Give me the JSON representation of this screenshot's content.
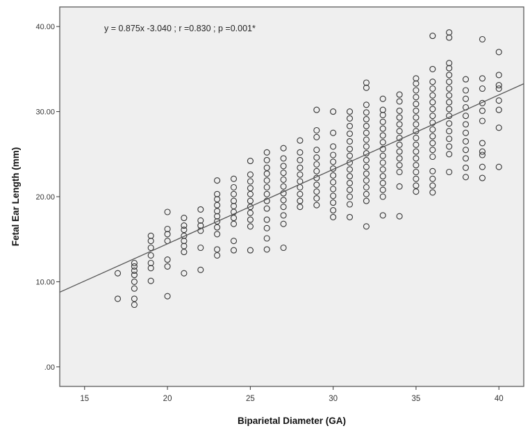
{
  "chart_data": {
    "type": "scatter",
    "title": "",
    "xlabel": "Biparietal Diameter (GA)",
    "ylabel": "Fetal Ear Length (mm)",
    "xlim": [
      13.5,
      41.5
    ],
    "ylim": [
      -2.3,
      42.3
    ],
    "x_ticks": [
      15,
      20,
      25,
      30,
      35,
      40
    ],
    "x_tick_labels": [
      "15",
      "20",
      "25",
      "30",
      "35",
      "40"
    ],
    "y_ticks": [
      0,
      10,
      20,
      30,
      40
    ],
    "y_tick_labels": [
      ".00",
      "10.00",
      "20.00",
      "30.00",
      "40.00"
    ],
    "annotation": "y = 0.875x -3.040 ; r =0.830 ; p =0.001*",
    "grid": false,
    "legend": "none",
    "fit_line": {
      "slope": 0.875,
      "intercept": -3.04
    },
    "colors": {
      "plot_background": "#efefef",
      "marker": "#333333",
      "fit_line": "#555555"
    },
    "points": [
      [
        17,
        8
      ],
      [
        17,
        11
      ],
      [
        18,
        7.3
      ],
      [
        18,
        8
      ],
      [
        18,
        9.2
      ],
      [
        18,
        10
      ],
      [
        18,
        10.8
      ],
      [
        18,
        11.3
      ],
      [
        18,
        11.8
      ],
      [
        18,
        12.2
      ],
      [
        19,
        10.1
      ],
      [
        19,
        11.6
      ],
      [
        19,
        12.2
      ],
      [
        19,
        13.1
      ],
      [
        19,
        14
      ],
      [
        19,
        14.8
      ],
      [
        19,
        15.4
      ],
      [
        20,
        8.3
      ],
      [
        20,
        11.8
      ],
      [
        20,
        12.6
      ],
      [
        20,
        14.8
      ],
      [
        20,
        15.6
      ],
      [
        20,
        16.2
      ],
      [
        20,
        18.2
      ],
      [
        21,
        11
      ],
      [
        21,
        13.5
      ],
      [
        21,
        14.2
      ],
      [
        21,
        14.8
      ],
      [
        21,
        15.4
      ],
      [
        21,
        16.1
      ],
      [
        21,
        16.6
      ],
      [
        21,
        17.5
      ],
      [
        22,
        11.4
      ],
      [
        22,
        14
      ],
      [
        22,
        16
      ],
      [
        22,
        16.6
      ],
      [
        22,
        17.2
      ],
      [
        22,
        18.5
      ],
      [
        23,
        13.1
      ],
      [
        23,
        13.8
      ],
      [
        23,
        15.6
      ],
      [
        23,
        16.4
      ],
      [
        23,
        17.1
      ],
      [
        23,
        17.7
      ],
      [
        23,
        18.3
      ],
      [
        23,
        19
      ],
      [
        23,
        19.7
      ],
      [
        23,
        20.3
      ],
      [
        23,
        21.9
      ],
      [
        24,
        13.7
      ],
      [
        24,
        14.8
      ],
      [
        24,
        16.8
      ],
      [
        24,
        17.5
      ],
      [
        24,
        18.2
      ],
      [
        24,
        18.9
      ],
      [
        24,
        19.5
      ],
      [
        24,
        20.3
      ],
      [
        24,
        21.1
      ],
      [
        24,
        22.1
      ],
      [
        25,
        13.7
      ],
      [
        25,
        16.5
      ],
      [
        25,
        17.3
      ],
      [
        25,
        18.1
      ],
      [
        25,
        18.8
      ],
      [
        25,
        19.5
      ],
      [
        25,
        20.3
      ],
      [
        25,
        21
      ],
      [
        25,
        21.8
      ],
      [
        25,
        22.6
      ],
      [
        25,
        24.2
      ],
      [
        26,
        13.8
      ],
      [
        26,
        15.1
      ],
      [
        26,
        16.3
      ],
      [
        26,
        17.3
      ],
      [
        26,
        18.6
      ],
      [
        26,
        19.5
      ],
      [
        26,
        20.3
      ],
      [
        26,
        21.1
      ],
      [
        26,
        21.9
      ],
      [
        26,
        22.7
      ],
      [
        26,
        23.4
      ],
      [
        26,
        24.3
      ],
      [
        26,
        25.2
      ],
      [
        27,
        14
      ],
      [
        27,
        16.8
      ],
      [
        27,
        17.8
      ],
      [
        27,
        18.8
      ],
      [
        27,
        19.6
      ],
      [
        27,
        20.4
      ],
      [
        27,
        21.2
      ],
      [
        27,
        22
      ],
      [
        27,
        22.8
      ],
      [
        27,
        23.6
      ],
      [
        27,
        24.5
      ],
      [
        27,
        25.7
      ],
      [
        28,
        18.8
      ],
      [
        28,
        19.5
      ],
      [
        28,
        20.3
      ],
      [
        28,
        21.1
      ],
      [
        28,
        21.8
      ],
      [
        28,
        22.6
      ],
      [
        28,
        23.4
      ],
      [
        28,
        24.3
      ],
      [
        28,
        25.2
      ],
      [
        28,
        26.6
      ],
      [
        29,
        19
      ],
      [
        29,
        19.8
      ],
      [
        29,
        20.6
      ],
      [
        29,
        21.4
      ],
      [
        29,
        22.2
      ],
      [
        29,
        23
      ],
      [
        29,
        23.8
      ],
      [
        29,
        24.6
      ],
      [
        29,
        25.5
      ],
      [
        29,
        27
      ],
      [
        29,
        27.8
      ],
      [
        29,
        30.2
      ],
      [
        30,
        17.6
      ],
      [
        30,
        18.4
      ],
      [
        30,
        19.3
      ],
      [
        30,
        20.1
      ],
      [
        30,
        20.9
      ],
      [
        30,
        21.7
      ],
      [
        30,
        22.5
      ],
      [
        30,
        23.3
      ],
      [
        30,
        24.1
      ],
      [
        30,
        24.9
      ],
      [
        30,
        25.9
      ],
      [
        30,
        27.5
      ],
      [
        30,
        30
      ],
      [
        31,
        17.6
      ],
      [
        31,
        19.1
      ],
      [
        31,
        20
      ],
      [
        31,
        20.8
      ],
      [
        31,
        21.6
      ],
      [
        31,
        22.4
      ],
      [
        31,
        23.2
      ],
      [
        31,
        24
      ],
      [
        31,
        24.8
      ],
      [
        31,
        25.6
      ],
      [
        31,
        26.5
      ],
      [
        31,
        27.4
      ],
      [
        31,
        28.3
      ],
      [
        31,
        29.2
      ],
      [
        31,
        30
      ],
      [
        32,
        16.5
      ],
      [
        32,
        19.5
      ],
      [
        32,
        20.3
      ],
      [
        32,
        21.1
      ],
      [
        32,
        21.9
      ],
      [
        32,
        22.7
      ],
      [
        32,
        23.5
      ],
      [
        32,
        24.3
      ],
      [
        32,
        25.1
      ],
      [
        32,
        25.9
      ],
      [
        32,
        26.7
      ],
      [
        32,
        27.5
      ],
      [
        32,
        28.3
      ],
      [
        32,
        29.1
      ],
      [
        32,
        29.9
      ],
      [
        32,
        30.8
      ],
      [
        32,
        32.8
      ],
      [
        32,
        33.4
      ],
      [
        33,
        17.8
      ],
      [
        33,
        20
      ],
      [
        33,
        20.8
      ],
      [
        33,
        21.6
      ],
      [
        33,
        22.4
      ],
      [
        33,
        23.2
      ],
      [
        33,
        24
      ],
      [
        33,
        24.8
      ],
      [
        33,
        25.6
      ],
      [
        33,
        26.4
      ],
      [
        33,
        27.2
      ],
      [
        33,
        28
      ],
      [
        33,
        28.8
      ],
      [
        33,
        29.6
      ],
      [
        33,
        30.2
      ],
      [
        33,
        31.5
      ],
      [
        34,
        17.7
      ],
      [
        34,
        21.2
      ],
      [
        34,
        22.9
      ],
      [
        34,
        23.7
      ],
      [
        34,
        24.5
      ],
      [
        34,
        25.3
      ],
      [
        34,
        26.1
      ],
      [
        34,
        26.9
      ],
      [
        34,
        27.7
      ],
      [
        34,
        28.5
      ],
      [
        34,
        29.3
      ],
      [
        34,
        30.1
      ],
      [
        34,
        31.2
      ],
      [
        34,
        32
      ],
      [
        35,
        20.6
      ],
      [
        35,
        21.3
      ],
      [
        35,
        22.1
      ],
      [
        35,
        22.9
      ],
      [
        35,
        23.7
      ],
      [
        35,
        24.5
      ],
      [
        35,
        25.3
      ],
      [
        35,
        26.1
      ],
      [
        35,
        26.9
      ],
      [
        35,
        27.7
      ],
      [
        35,
        28.5
      ],
      [
        35,
        29.3
      ],
      [
        35,
        30.1
      ],
      [
        35,
        30.9
      ],
      [
        35,
        31.7
      ],
      [
        35,
        32.5
      ],
      [
        35,
        33.3
      ],
      [
        35,
        33.9
      ],
      [
        36,
        20.5
      ],
      [
        36,
        21.3
      ],
      [
        36,
        22.1
      ],
      [
        36,
        23
      ],
      [
        36,
        24.7
      ],
      [
        36,
        25.5
      ],
      [
        36,
        26.3
      ],
      [
        36,
        27.1
      ],
      [
        36,
        27.9
      ],
      [
        36,
        28.7
      ],
      [
        36,
        29.5
      ],
      [
        36,
        30.3
      ],
      [
        36,
        31.1
      ],
      [
        36,
        31.9
      ],
      [
        36,
        32.7
      ],
      [
        36,
        33.5
      ],
      [
        36,
        35
      ],
      [
        36,
        38.9
      ],
      [
        37,
        22.9
      ],
      [
        37,
        25
      ],
      [
        37,
        25.9
      ],
      [
        37,
        26.8
      ],
      [
        37,
        27.7
      ],
      [
        37,
        28.6
      ],
      [
        37,
        29.5
      ],
      [
        37,
        30.3
      ],
      [
        37,
        31.1
      ],
      [
        37,
        31.9
      ],
      [
        37,
        32.7
      ],
      [
        37,
        33.5
      ],
      [
        37,
        34.3
      ],
      [
        37,
        35.1
      ],
      [
        37,
        35.7
      ],
      [
        37,
        38.7
      ],
      [
        37,
        39.3
      ],
      [
        38,
        22.3
      ],
      [
        38,
        23.4
      ],
      [
        38,
        24.5
      ],
      [
        38,
        25.5
      ],
      [
        38,
        26.5
      ],
      [
        38,
        27.5
      ],
      [
        38,
        28.5
      ],
      [
        38,
        29.5
      ],
      [
        38,
        30.5
      ],
      [
        38,
        31.5
      ],
      [
        38,
        32.5
      ],
      [
        38,
        33.8
      ],
      [
        39,
        22.2
      ],
      [
        39,
        23.5
      ],
      [
        39,
        24.9
      ],
      [
        39,
        25.3
      ],
      [
        39,
        26.3
      ],
      [
        39,
        28.9
      ],
      [
        39,
        30.1
      ],
      [
        39,
        31
      ],
      [
        39,
        32.7
      ],
      [
        39,
        33.9
      ],
      [
        39,
        38.5
      ],
      [
        40,
        23.5
      ],
      [
        40,
        28.1
      ],
      [
        40,
        30.2
      ],
      [
        40,
        31.3
      ],
      [
        40,
        32.7
      ],
      [
        40,
        33.1
      ],
      [
        40,
        34.3
      ],
      [
        40,
        37
      ]
    ]
  }
}
